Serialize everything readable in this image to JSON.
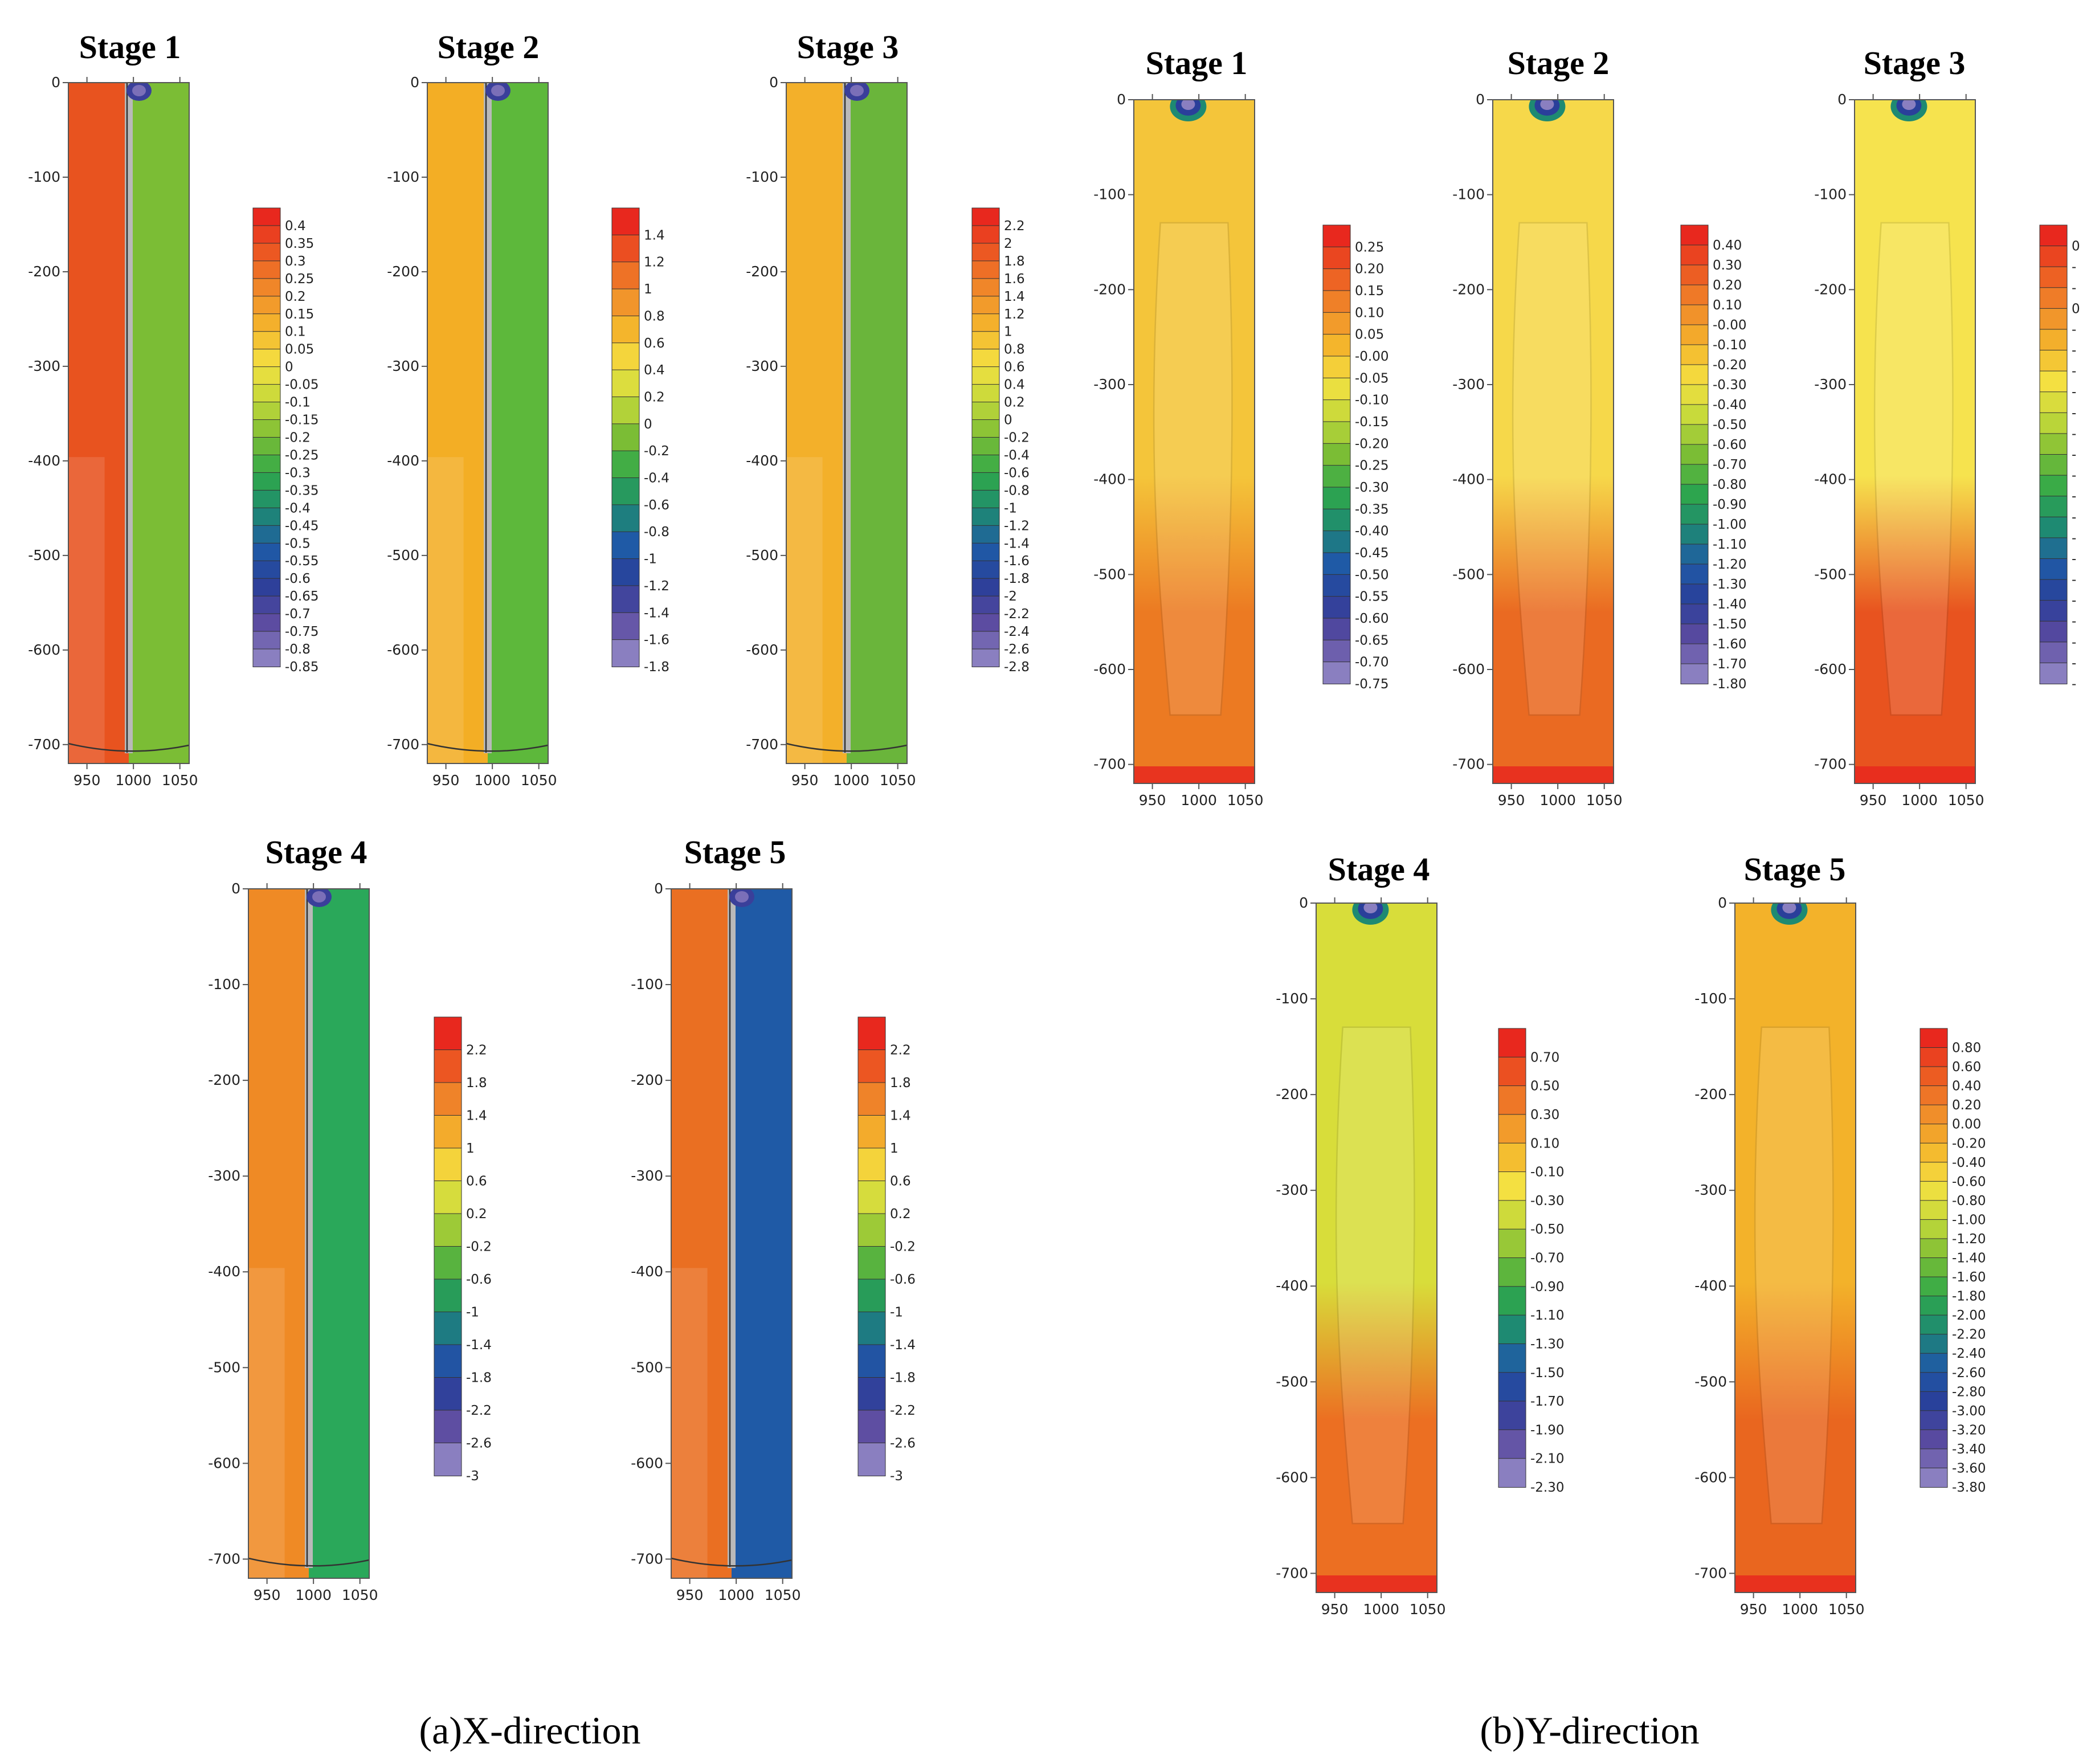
{
  "captions": [
    {
      "id": "x",
      "text": "(a)X-direction"
    },
    {
      "id": "y",
      "text": "(b)Y-direction"
    }
  ],
  "chart_data": [
    {
      "type": "heatmap",
      "group": "x",
      "title": "Stage 1",
      "x_ticks": [
        "950",
        "1000",
        "1050"
      ],
      "y_ticks": [
        "0",
        "-100",
        "-200",
        "-300",
        "-400",
        "-500",
        "-600",
        "-700"
      ],
      "xlim": [
        930,
        1060
      ],
      "ylim": [
        -720,
        0
      ],
      "wall_x": 995,
      "legend": [
        "0.4",
        "0.35",
        "0.3",
        "0.25",
        "0.2",
        "0.15",
        "0.1",
        "0.05",
        "0",
        "-0.05",
        "-0.1",
        "-0.15",
        "-0.2",
        "-0.25",
        "-0.3",
        "-0.35",
        "-0.4",
        "-0.45",
        "-0.5",
        "-0.55",
        "-0.6",
        "-0.65",
        "-0.7",
        "-0.75",
        "-0.8",
        "-0.85"
      ],
      "fill": {
        "left": "#e8531f",
        "right": "#7bbd35"
      }
    },
    {
      "type": "heatmap",
      "group": "x",
      "title": "Stage 2",
      "x_ticks": [
        "950",
        "1000",
        "1050"
      ],
      "y_ticks": [
        "0",
        "-100",
        "-200",
        "-300",
        "-400",
        "-500",
        "-600",
        "-700"
      ],
      "xlim": [
        930,
        1060
      ],
      "ylim": [
        -720,
        0
      ],
      "wall_x": 995,
      "legend": [
        "1.4",
        "1.2",
        "1",
        "0.8",
        "0.6",
        "0.4",
        "0.2",
        "0",
        "-0.2",
        "-0.4",
        "-0.6",
        "-0.8",
        "-1",
        "-1.2",
        "-1.4",
        "-1.6",
        "-1.8"
      ],
      "fill": {
        "left": "#f3ae25",
        "right": "#5db83b"
      }
    },
    {
      "type": "heatmap",
      "group": "x",
      "title": "Stage 3",
      "x_ticks": [
        "950",
        "1000",
        "1050"
      ],
      "y_ticks": [
        "0",
        "-100",
        "-200",
        "-300",
        "-400",
        "-500",
        "-600",
        "-700"
      ],
      "xlim": [
        930,
        1060
      ],
      "ylim": [
        -720,
        0
      ],
      "wall_x": 995,
      "legend": [
        "2.2",
        "2",
        "1.8",
        "1.6",
        "1.4",
        "1.2",
        "1",
        "0.8",
        "0.6",
        "0.4",
        "0.2",
        "0",
        "-0.2",
        "-0.4",
        "-0.6",
        "-0.8",
        "-1",
        "-1.2",
        "-1.4",
        "-1.6",
        "-1.8",
        "-2",
        "-2.2",
        "-2.4",
        "-2.6",
        "-2.8"
      ],
      "fill": {
        "left": "#f3b02a",
        "right": "#6ab53b"
      }
    },
    {
      "type": "heatmap",
      "group": "x",
      "title": "Stage 4",
      "x_ticks": [
        "950",
        "1000",
        "1050"
      ],
      "y_ticks": [
        "0",
        "-100",
        "-200",
        "-300",
        "-400",
        "-500",
        "-600",
        "-700"
      ],
      "xlim": [
        930,
        1060
      ],
      "ylim": [
        -720,
        0
      ],
      "wall_x": 995,
      "legend": [
        "2.2",
        "1.8",
        "1.4",
        "1",
        "0.6",
        "0.2",
        "-0.2",
        "-0.6",
        "-1",
        "-1.4",
        "-1.8",
        "-2.2",
        "-2.6",
        "-3"
      ],
      "fill": {
        "left": "#ef8a25",
        "right": "#2aa85a"
      }
    },
    {
      "type": "heatmap",
      "group": "x",
      "title": "Stage 5",
      "x_ticks": [
        "950",
        "1000",
        "1050"
      ],
      "y_ticks": [
        "0",
        "-100",
        "-200",
        "-300",
        "-400",
        "-500",
        "-600",
        "-700"
      ],
      "xlim": [
        930,
        1060
      ],
      "ylim": [
        -720,
        0
      ],
      "wall_x": 995,
      "legend": [
        "2.2",
        "1.8",
        "1.4",
        "1",
        "0.6",
        "0.2",
        "-0.2",
        "-0.6",
        "-1",
        "-1.4",
        "-1.8",
        "-2.2",
        "-2.6",
        "-3"
      ],
      "fill": {
        "left": "#ea6f22",
        "right": "#1f5aa6"
      }
    },
    {
      "type": "heatmap",
      "group": "y",
      "title": "Stage 1",
      "x_ticks": [
        "950",
        "1000",
        "1050"
      ],
      "y_ticks": [
        "0",
        "-100",
        "-200",
        "-300",
        "-400",
        "-500",
        "-600",
        "-700"
      ],
      "xlim": [
        930,
        1060
      ],
      "ylim": [
        -720,
        0
      ],
      "legend": [
        "0.25",
        "0.20",
        "0.15",
        "0.10",
        "0.05",
        "-0.00",
        "-0.05",
        "-0.10",
        "-0.15",
        "-0.20",
        "-0.25",
        "-0.30",
        "-0.35",
        "-0.40",
        "-0.45",
        "-0.50",
        "-0.55",
        "-0.60",
        "-0.65",
        "-0.70",
        "-0.75"
      ],
      "fill": {
        "top": "#f4c53a",
        "bottom": "#ec7a22"
      }
    },
    {
      "type": "heatmap",
      "group": "y",
      "title": "Stage 2",
      "x_ticks": [
        "950",
        "1000",
        "1050"
      ],
      "y_ticks": [
        "0",
        "-100",
        "-200",
        "-300",
        "-400",
        "-500",
        "-600",
        "-700"
      ],
      "xlim": [
        930,
        1060
      ],
      "ylim": [
        -720,
        0
      ],
      "legend": [
        "0.40",
        "0.30",
        "0.20",
        "0.10",
        "-0.00",
        "-0.10",
        "-0.20",
        "-0.30",
        "-0.40",
        "-0.50",
        "-0.60",
        "-0.70",
        "-0.80",
        "-0.90",
        "-1.00",
        "-1.10",
        "-1.20",
        "-1.30",
        "-1.40",
        "-1.50",
        "-1.60",
        "-1.70",
        "-1.80"
      ],
      "fill": {
        "top": "#f6d84a",
        "bottom": "#ea6a22"
      }
    },
    {
      "type": "heatmap",
      "group": "y",
      "title": "Stage 3",
      "x_ticks": [
        "950",
        "1000",
        "1050"
      ],
      "y_ticks": [
        "0",
        "-100",
        "-200",
        "-300",
        "-400",
        "-500",
        "-600",
        "-700"
      ],
      "xlim": [
        930,
        1060
      ],
      "ylim": [
        -720,
        0
      ],
      "legend": [
        "0",
        "-",
        "-",
        "0",
        "-",
        "-",
        "-",
        "-",
        "-",
        "-",
        "-",
        "-",
        "-",
        "-",
        "-",
        "-",
        "-",
        "-",
        "-",
        "-",
        "-",
        "-"
      ],
      "legend_clipped": true,
      "fill": {
        "top": "#f6e34e",
        "bottom": "#e8531f"
      }
    },
    {
      "type": "heatmap",
      "group": "y",
      "title": "Stage 4",
      "x_ticks": [
        "950",
        "1000",
        "1050"
      ],
      "y_ticks": [
        "0",
        "-100",
        "-200",
        "-300",
        "-400",
        "-500",
        "-600",
        "-700"
      ],
      "xlim": [
        930,
        1060
      ],
      "ylim": [
        -720,
        0
      ],
      "legend": [
        "0.70",
        "0.50",
        "0.30",
        "0.10",
        "-0.10",
        "-0.30",
        "-0.50",
        "-0.70",
        "-0.90",
        "-1.10",
        "-1.30",
        "-1.50",
        "-1.70",
        "-1.90",
        "-2.10",
        "-2.30"
      ],
      "fill": {
        "top": "#d8dd3a",
        "bottom": "#ec6f22"
      }
    },
    {
      "type": "heatmap",
      "group": "y",
      "title": "Stage 5",
      "x_ticks": [
        "950",
        "1000",
        "1050"
      ],
      "y_ticks": [
        "0",
        "-100",
        "-200",
        "-300",
        "-400",
        "-500",
        "-600",
        "-700"
      ],
      "xlim": [
        930,
        1060
      ],
      "ylim": [
        -720,
        0
      ],
      "legend": [
        "0.80",
        "0.60",
        "0.40",
        "0.20",
        "0.00",
        "-0.20",
        "-0.40",
        "-0.60",
        "-0.80",
        "-1.00",
        "-1.20",
        "-1.40",
        "-1.60",
        "-1.80",
        "-2.00",
        "-2.20",
        "-2.40",
        "-2.60",
        "-2.80",
        "-3.00",
        "-3.20",
        "-3.40",
        "-3.60",
        "-3.80"
      ],
      "fill": {
        "top": "#f3b22a",
        "bottom": "#e9661f"
      }
    }
  ]
}
